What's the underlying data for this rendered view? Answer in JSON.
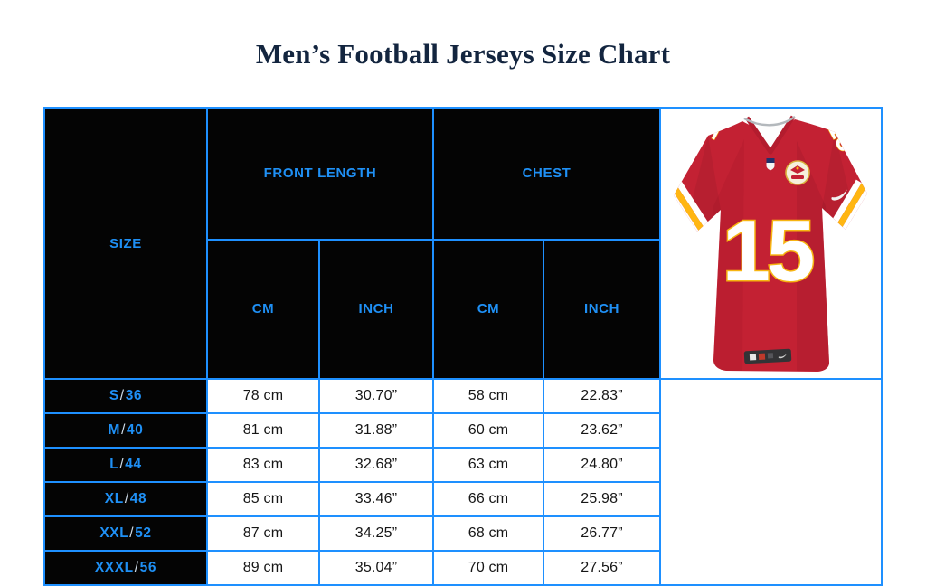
{
  "page": {
    "title": "Men’s Football Jerseys Size Chart"
  },
  "colors": {
    "accent_blue": "#1E90FF",
    "header_text_blue": "#1F90F5",
    "header_bg_black": "#040404",
    "title_navy": "#13253F",
    "jersey_red": "#C32133",
    "jersey_gold": "#FFB612"
  },
  "chart_data": {
    "type": "table",
    "title": "Men’s Football Jerseys Size Chart",
    "header": {
      "size": "SIZE",
      "front_length": "FRONT LENGTH",
      "chest": "CHEST",
      "cm": "CM",
      "inch": "INCH"
    },
    "rows": [
      {
        "size": "S/36",
        "front_cm": "78 cm",
        "front_inch": "30.70”",
        "chest_cm": "58 cm",
        "chest_inch": "22.83”"
      },
      {
        "size": "M/40",
        "front_cm": "81 cm",
        "front_inch": "31.88”",
        "chest_cm": "60 cm",
        "chest_inch": "23.62”"
      },
      {
        "size": "L/44",
        "front_cm": "83 cm",
        "front_inch": "32.68”",
        "chest_cm": "63 cm",
        "chest_inch": "24.80”"
      },
      {
        "size": "XL/48",
        "front_cm": "85 cm",
        "front_inch": "33.46”",
        "chest_cm": "66 cm",
        "chest_inch": "25.98”"
      },
      {
        "size": "XXL/52",
        "front_cm": "87 cm",
        "front_inch": "34.25”",
        "chest_cm": "68 cm",
        "chest_inch": "26.77”"
      },
      {
        "size": "XXXL/56",
        "front_cm": "89 cm",
        "front_inch": "35.04”",
        "chest_cm": "70 cm",
        "chest_inch": "27.56”"
      }
    ]
  },
  "jersey": {
    "number": "15"
  }
}
